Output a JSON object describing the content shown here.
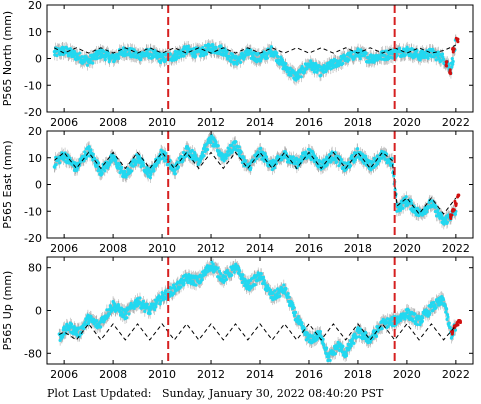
{
  "footer": {
    "label": "Plot Last Updated:",
    "timestamp": "Sunday, January 30, 2022 08:40:20 PST"
  },
  "colors": {
    "observations": "#22d8f0",
    "error_bars": "#b0b0b0",
    "recent_observations": "#d01010",
    "model_fit": "#000000",
    "event_markers": "#d62020"
  },
  "chart_data": [
    {
      "type": "scatter",
      "ylabel": "P565 North (mm)",
      "xlim": [
        2005.3,
        2022.7
      ],
      "ylim": [
        -20,
        20
      ],
      "x_ticks": [
        2006,
        2008,
        2010,
        2012,
        2014,
        2016,
        2018,
        2020,
        2022
      ],
      "y_ticks": [
        -20,
        -10,
        0,
        10,
        20
      ],
      "event_lines": [
        2010.25,
        2019.5
      ],
      "grid": false,
      "series": [
        {
          "kind": "observations",
          "x": [
            2005.6,
            2006.0,
            2006.5,
            2007.0,
            2007.5,
            2008.0,
            2008.5,
            2009.0,
            2009.5,
            2010.0,
            2010.5,
            2011.0,
            2011.5,
            2012.0,
            2012.5,
            2013.0,
            2013.5,
            2014.0,
            2014.5,
            2015.0,
            2015.5,
            2016.0,
            2016.5,
            2017.0,
            2017.5,
            2018.0,
            2018.5,
            2019.0,
            2019.5,
            2020.0,
            2020.5,
            2021.0,
            2021.5,
            2021.8,
            2022.0
          ],
          "y": [
            2,
            3,
            1,
            -1,
            2,
            0,
            3,
            1,
            2,
            0,
            1,
            3,
            2,
            4,
            3,
            -1,
            2,
            0,
            3,
            -3,
            -7,
            -2,
            -5,
            -2,
            0,
            2,
            0,
            1,
            2,
            3,
            1,
            2,
            0,
            -4,
            6
          ]
        },
        {
          "kind": "recent",
          "x": [
            2021.6,
            2021.75,
            2021.9,
            2022.05
          ],
          "y": [
            -2,
            -5,
            3,
            7
          ]
        },
        {
          "kind": "model",
          "x": [
            2005.6,
            2006.0,
            2006.5,
            2007.0,
            2007.5,
            2008.0,
            2008.5,
            2009.0,
            2009.5,
            2010.0,
            2010.5,
            2011.0,
            2011.5,
            2012.0,
            2012.5,
            2013.0,
            2013.5,
            2014.0,
            2014.5,
            2015.0,
            2015.5,
            2016.0,
            2016.5,
            2017.0,
            2017.5,
            2018.0,
            2018.5,
            2019.0,
            2019.5,
            2020.0,
            2020.5,
            2021.0,
            2021.5,
            2022.0
          ],
          "y": [
            4,
            2,
            4,
            2,
            4,
            2,
            4,
            2,
            4,
            2,
            4,
            2,
            4,
            2,
            4,
            2,
            4,
            2,
            4,
            2,
            4,
            2,
            4,
            2,
            4,
            2,
            4,
            2,
            4,
            2,
            4,
            2,
            3,
            5
          ]
        }
      ]
    },
    {
      "type": "scatter",
      "ylabel": "P565 East (mm)",
      "xlim": [
        2005.3,
        2022.7
      ],
      "ylim": [
        -20,
        20
      ],
      "x_ticks": [
        2006,
        2008,
        2010,
        2012,
        2014,
        2016,
        2018,
        2020,
        2022
      ],
      "y_ticks": [
        -20,
        -10,
        0,
        10,
        20
      ],
      "event_lines": [
        2010.25,
        2019.5
      ],
      "grid": false,
      "series": [
        {
          "kind": "observations",
          "x": [
            2005.6,
            2006.0,
            2006.5,
            2007.0,
            2007.5,
            2008.0,
            2008.5,
            2009.0,
            2009.5,
            2010.0,
            2010.5,
            2011.0,
            2011.5,
            2012.0,
            2012.5,
            2013.0,
            2013.5,
            2014.0,
            2014.5,
            2015.0,
            2015.5,
            2016.0,
            2016.5,
            2017.0,
            2017.5,
            2018.0,
            2018.5,
            2019.0,
            2019.4,
            2019.6,
            2020.0,
            2020.5,
            2021.0,
            2021.5,
            2022.0
          ],
          "y": [
            8,
            11,
            6,
            13,
            5,
            10,
            3,
            10,
            4,
            12,
            5,
            13,
            9,
            17,
            10,
            15,
            6,
            12,
            7,
            11,
            8,
            12,
            7,
            11,
            6,
            12,
            7,
            11,
            8,
            -9,
            -6,
            -11,
            -7,
            -14,
            -10
          ]
        },
        {
          "kind": "recent",
          "x": [
            2021.8,
            2021.9,
            2022.0,
            2022.1
          ],
          "y": [
            -12,
            -10,
            -7,
            -4
          ]
        },
        {
          "kind": "model",
          "x": [
            2005.6,
            2006.0,
            2006.5,
            2007.0,
            2007.5,
            2008.0,
            2008.5,
            2009.0,
            2009.5,
            2010.0,
            2010.5,
            2011.0,
            2011.5,
            2012.0,
            2012.5,
            2013.0,
            2013.5,
            2014.0,
            2014.5,
            2015.0,
            2015.5,
            2016.0,
            2016.5,
            2017.0,
            2017.5,
            2018.0,
            2018.5,
            2019.0,
            2019.4,
            2019.6,
            2020.0,
            2020.5,
            2021.0,
            2021.5,
            2022.0
          ],
          "y": [
            9,
            12,
            6,
            12,
            6,
            12,
            6,
            12,
            6,
            12,
            6,
            12,
            6,
            12,
            6,
            12,
            6,
            12,
            6,
            12,
            6,
            12,
            6,
            12,
            6,
            12,
            6,
            12,
            9,
            -8,
            -5,
            -11,
            -5,
            -11,
            -5
          ]
        }
      ]
    },
    {
      "type": "scatter",
      "ylabel": "P565 Up (mm)",
      "xlim": [
        2005.3,
        2022.7
      ],
      "ylim": [
        -100,
        100
      ],
      "x_ticks": [
        2006,
        2008,
        2010,
        2012,
        2014,
        2016,
        2018,
        2020,
        2022
      ],
      "y_ticks": [
        -80,
        0,
        80
      ],
      "event_lines": [
        2010.25,
        2019.5
      ],
      "grid": false,
      "series": [
        {
          "kind": "observations",
          "x": [
            2005.8,
            2006.2,
            2006.6,
            2007.0,
            2007.4,
            2008.0,
            2008.5,
            2009.0,
            2009.5,
            2010.0,
            2010.5,
            2011.0,
            2011.5,
            2012.0,
            2012.5,
            2013.0,
            2013.5,
            2014.0,
            2014.5,
            2015.0,
            2015.5,
            2016.0,
            2016.5,
            2016.8,
            2017.2,
            2017.5,
            2018.0,
            2018.5,
            2019.0,
            2019.5,
            2020.0,
            2020.5,
            2021.0,
            2021.5,
            2021.8,
            2022.0
          ],
          "y": [
            -50,
            -30,
            -42,
            -15,
            -28,
            10,
            -8,
            18,
            0,
            25,
            40,
            60,
            55,
            85,
            60,
            80,
            45,
            65,
            25,
            40,
            -15,
            -55,
            -45,
            -90,
            -65,
            -80,
            -40,
            -55,
            -25,
            -20,
            -5,
            -20,
            5,
            20,
            -45,
            -30
          ]
        },
        {
          "kind": "recent",
          "x": [
            2021.85,
            2021.95,
            2022.05,
            2022.15
          ],
          "y": [
            -42,
            -32,
            -24,
            -18
          ]
        },
        {
          "kind": "model",
          "x": [
            2005.8,
            2006.0,
            2006.5,
            2007.0,
            2007.5,
            2008.0,
            2008.5,
            2009.0,
            2009.5,
            2010.0,
            2010.5,
            2011.0,
            2011.5,
            2012.0,
            2012.5,
            2013.0,
            2013.5,
            2014.0,
            2014.5,
            2015.0,
            2015.5,
            2016.0,
            2016.5,
            2017.0,
            2017.5,
            2018.0,
            2018.5,
            2019.0,
            2019.5,
            2020.0,
            2020.5,
            2021.0,
            2021.5,
            2022.0
          ],
          "y": [
            -45,
            -40,
            -55,
            -25,
            -55,
            -25,
            -55,
            -25,
            -55,
            -25,
            -55,
            -25,
            -55,
            -25,
            -55,
            -25,
            -55,
            -25,
            -55,
            -25,
            -55,
            -25,
            -55,
            -25,
            -55,
            -25,
            -55,
            -25,
            -55,
            -25,
            -55,
            -25,
            -55,
            -28
          ]
        }
      ]
    }
  ]
}
